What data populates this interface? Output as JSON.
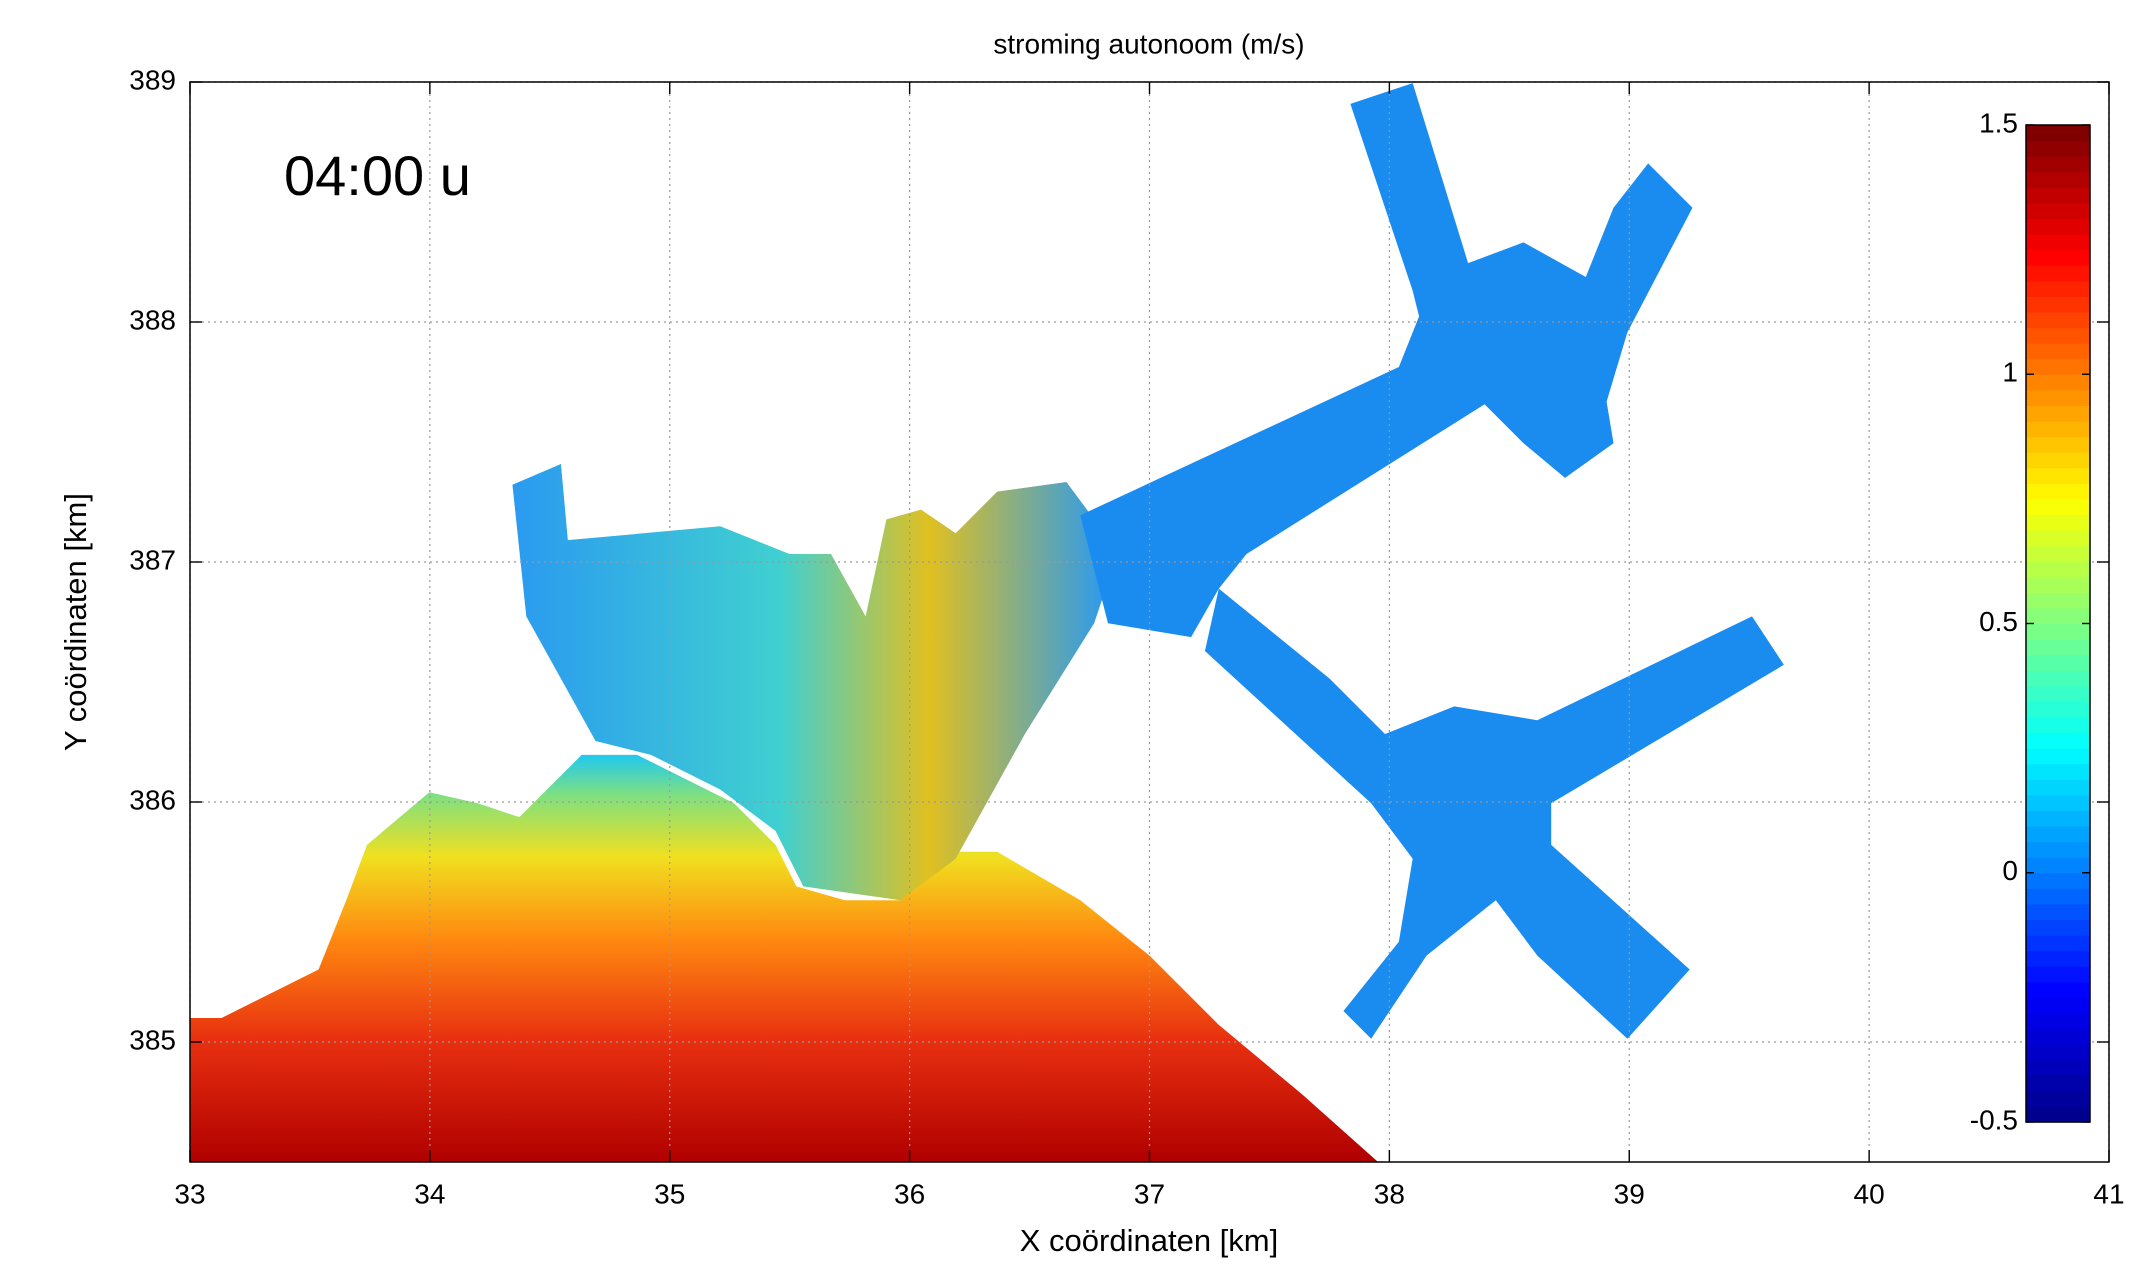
{
  "chart_data": {
    "type": "contour",
    "title": "stroming autonoom (m/s)",
    "annotation": "04:00 u",
    "xlabel": "X coördinaten [km]",
    "ylabel": "Y coördinaten [km]",
    "xlim": [
      33,
      41
    ],
    "xticks": [
      33,
      34,
      35,
      36,
      37,
      38,
      39,
      40,
      41
    ],
    "ylim": [
      384.5,
      389
    ],
    "yticks": [
      385,
      386,
      387,
      388,
      389
    ],
    "grid": true,
    "colorbar": {
      "lim": [
        -0.5,
        1.5
      ],
      "ticks": [
        -0.5,
        0,
        0.5,
        1,
        1.5
      ],
      "colormap": "jet"
    }
  }
}
